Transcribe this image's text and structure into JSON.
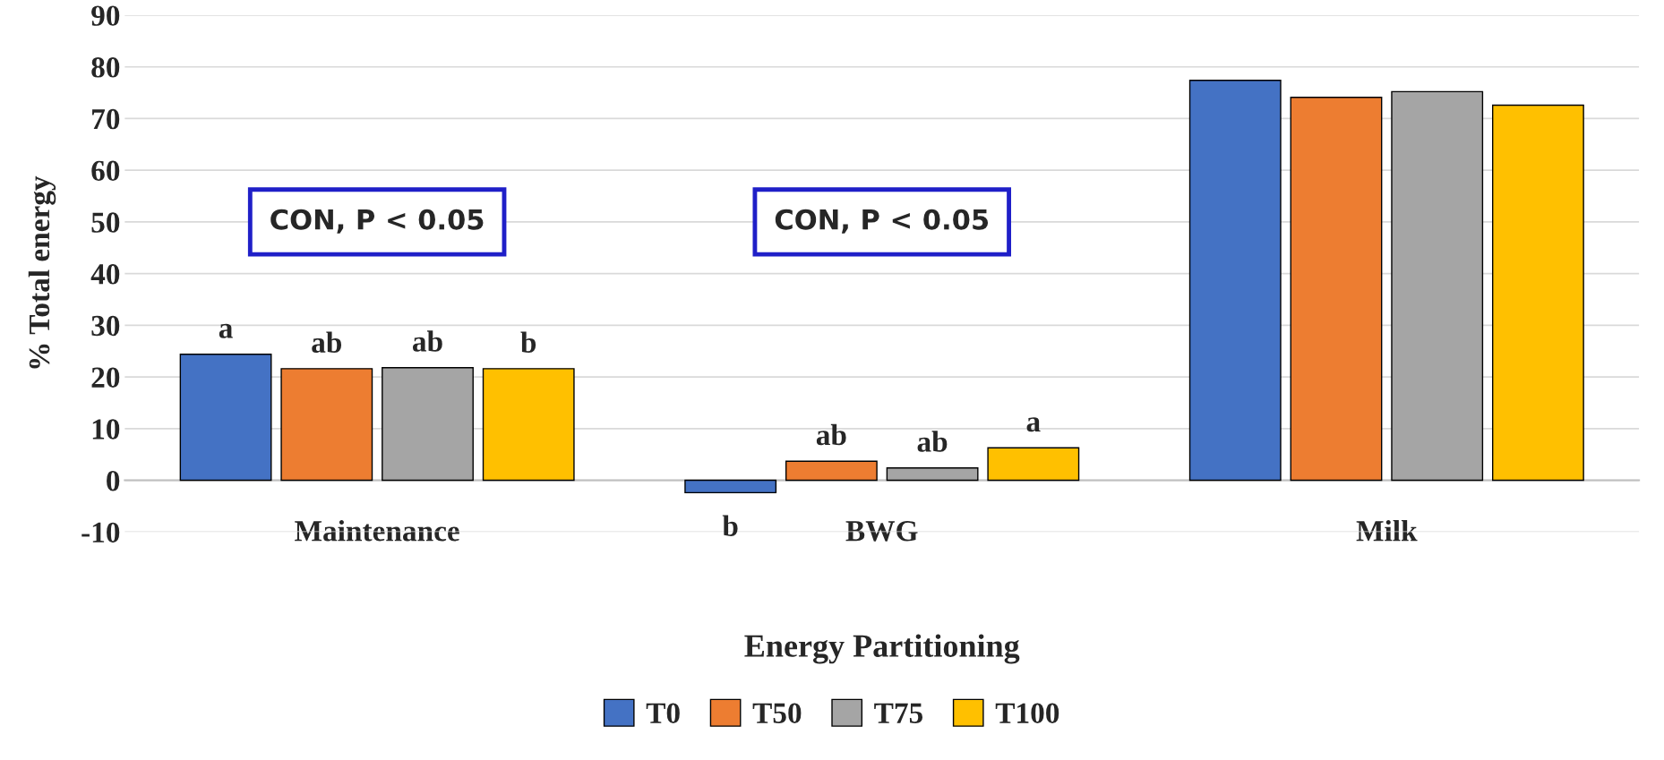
{
  "chart_data": {
    "type": "bar",
    "xlabel": "Energy Partitioning",
    "ylabel": "% Total energy",
    "categories": [
      "Maintenance",
      "BWG",
      "Milk"
    ],
    "series": [
      {
        "name": "T0",
        "color": "#4472c4",
        "values": [
          24.4,
          -2.4,
          77.4
        ],
        "value_labels": [
          "a",
          "b",
          null
        ]
      },
      {
        "name": "T50",
        "color": "#ed7d31",
        "values": [
          21.6,
          3.7,
          74.1
        ],
        "value_labels": [
          "ab",
          "ab",
          null
        ]
      },
      {
        "name": "T75",
        "color": "#a5a5a5",
        "values": [
          21.8,
          2.4,
          75.2
        ],
        "value_labels": [
          "ab",
          "ab",
          null
        ]
      },
      {
        "name": "T100",
        "color": "#ffc000",
        "values": [
          21.6,
          6.3,
          72.6
        ],
        "value_labels": [
          "b",
          "a",
          null
        ]
      }
    ],
    "annotations": [
      "CON, P < 0.05",
      "CON, P < 0.05"
    ],
    "ylim": [
      -10,
      90
    ],
    "yticks": [
      -10,
      0,
      10,
      20,
      30,
      40,
      50,
      60,
      70,
      80,
      90
    ],
    "grid": "y",
    "legend": "bottom"
  }
}
